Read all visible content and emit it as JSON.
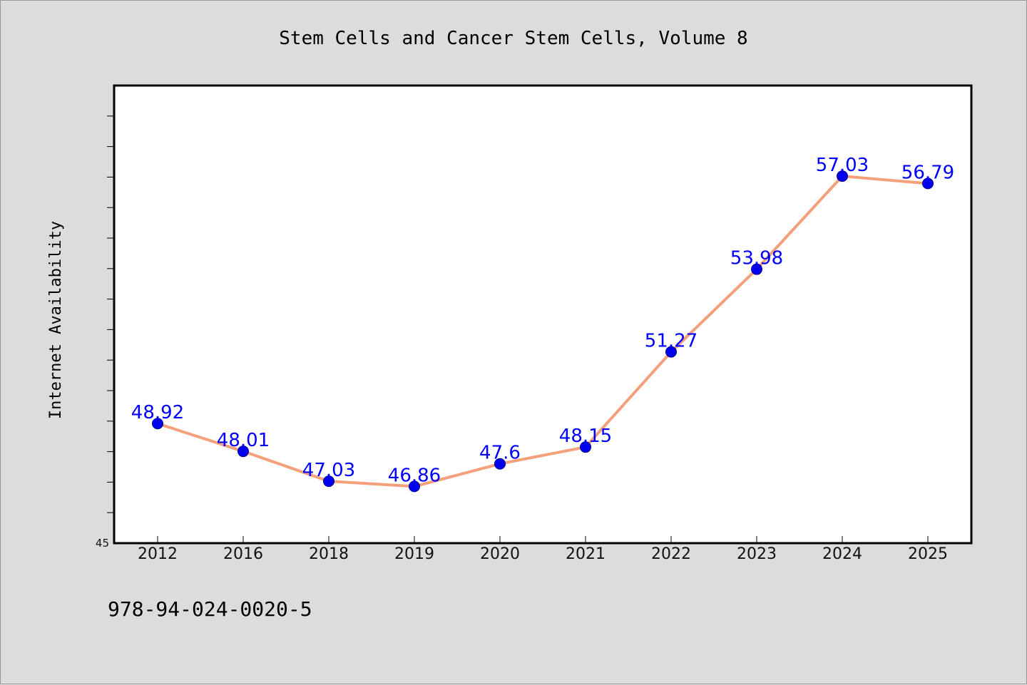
{
  "chart_data": {
    "type": "line",
    "title": "Stem Cells and Cancer Stem Cells, Volume 8",
    "ylabel": "Internet Availability",
    "xlabel": "",
    "categories": [
      "2012",
      "2016",
      "2018",
      "2019",
      "2020",
      "2021",
      "2022",
      "2023",
      "2024",
      "2025"
    ],
    "series": [
      {
        "values": [
          48.92,
          48.01,
          47.03,
          46.86,
          47.6,
          48.15,
          51.27,
          53.98,
          57.03,
          56.79
        ],
        "labels": [
          "48.92",
          "48.01",
          "47.03",
          "46.86",
          "47.6",
          "48.15",
          "51.27",
          "53.98",
          "57.03",
          "56.79"
        ],
        "line_color": "#f4a07a",
        "marker_color": "#0000ee"
      }
    ],
    "ylim": [
      45,
      60
    ],
    "y_min_label": "45",
    "label_color": "#0000ff",
    "grid": false
  },
  "footer_text": "978-94-024-0020-5",
  "colors": {
    "background": "#dcdcdc",
    "plot_background": "#ffffff",
    "axis": "#000000"
  }
}
